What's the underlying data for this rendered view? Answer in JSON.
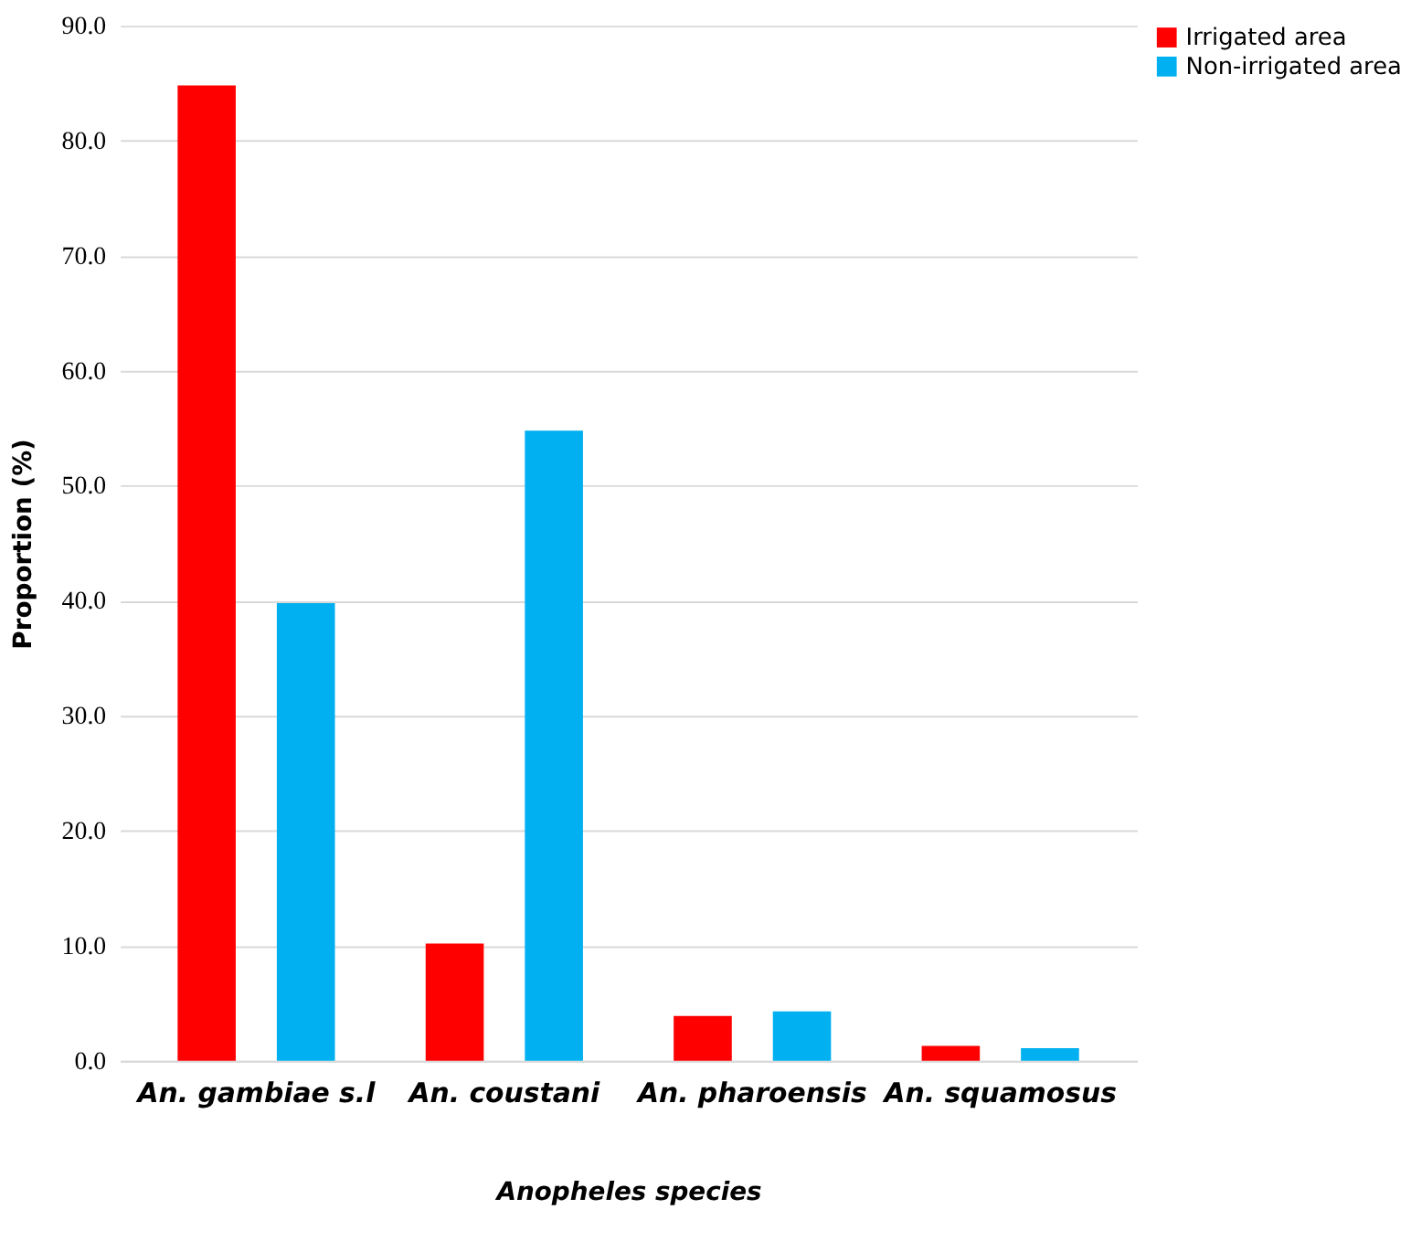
{
  "chart_data": {
    "type": "bar",
    "xlabel": "Anopheles species",
    "ylabel": "Proportion (%)",
    "categories": [
      "An. gambiae s.l",
      "An. coustani",
      "An. pharoensis",
      "An. squamosus"
    ],
    "series": [
      {
        "name": "Irrigated area",
        "color": "#ff0000",
        "values": [
          84.8,
          10.2,
          3.9,
          1.3
        ]
      },
      {
        "name": "Non-irrigated area",
        "color": "#00b0f0",
        "values": [
          39.8,
          54.8,
          4.3,
          1.1
        ]
      }
    ],
    "ylim": [
      0,
      90
    ],
    "yticks": [
      {
        "value": 0,
        "label": "0.0"
      },
      {
        "value": 10,
        "label": "10.0"
      },
      {
        "value": 20,
        "label": "20.0"
      },
      {
        "value": 30,
        "label": "30.0"
      },
      {
        "value": 40,
        "label": "40.0"
      },
      {
        "value": 50,
        "label": "50.0"
      },
      {
        "value": 60,
        "label": "60.0"
      },
      {
        "value": 70,
        "label": "70.0"
      },
      {
        "value": 80,
        "label": "80.0"
      },
      {
        "value": 90,
        "label": "90.0"
      }
    ],
    "grid": "y",
    "legend": "right"
  }
}
